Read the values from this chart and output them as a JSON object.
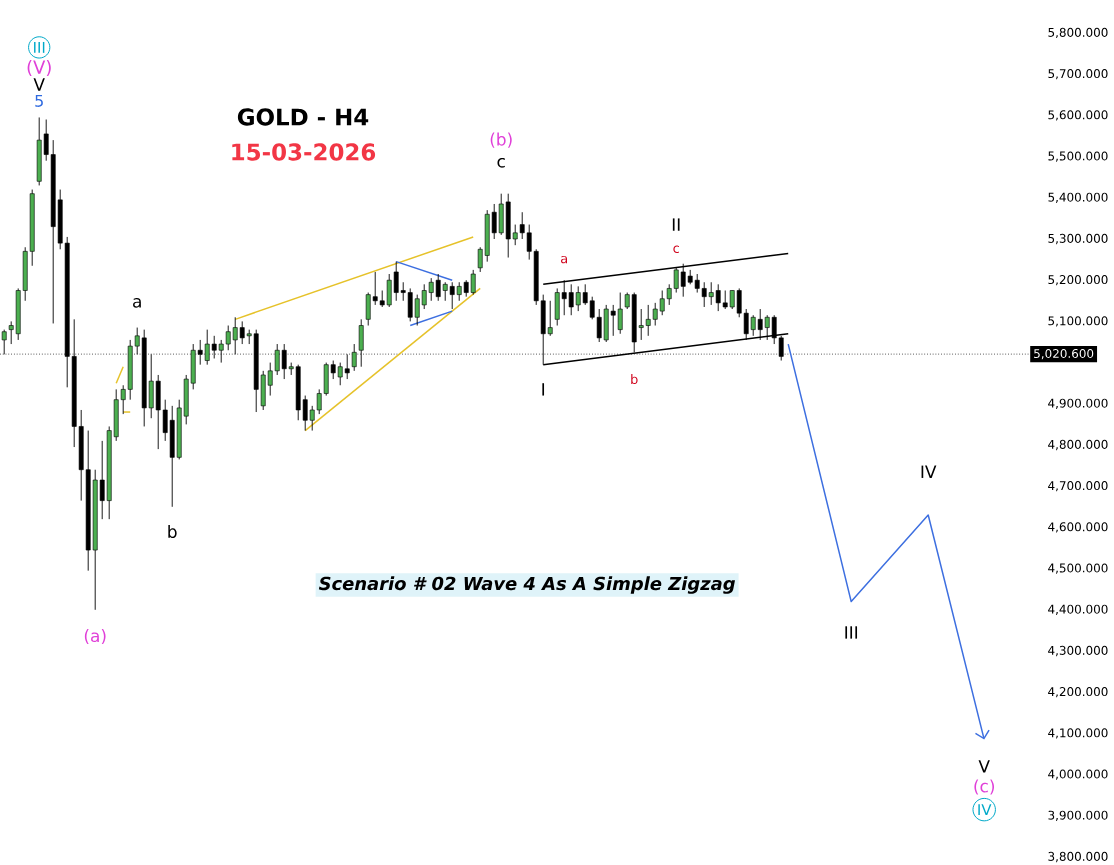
{
  "chart_data": {
    "type": "candlestick",
    "title": "GOLD - H4",
    "subtitle": "15-03-2026",
    "categories": [
      null,
      null,
      null,
      null,
      null,
      null,
      null,
      null,
      null,
      null,
      null,
      null,
      null,
      null,
      null,
      null,
      null,
      null,
      null,
      null,
      null,
      null,
      null,
      null,
      null,
      null,
      null,
      null,
      null,
      null,
      null,
      null,
      null,
      null,
      null,
      null,
      null,
      null,
      null,
      null,
      null,
      null,
      null,
      null,
      null,
      null,
      null,
      null,
      null,
      null,
      null,
      null,
      null,
      null,
      null,
      null,
      null,
      null,
      null,
      null,
      null,
      null,
      null,
      null,
      null,
      null,
      null,
      null,
      null,
      null,
      null,
      null,
      null,
      null,
      null,
      null,
      null,
      null,
      null,
      null,
      null,
      null,
      null,
      null,
      null,
      null,
      null,
      null,
      null,
      null,
      null,
      null,
      null,
      null,
      null,
      null,
      null,
      null,
      null,
      null,
      null,
      null,
      null,
      null,
      null,
      null,
      null,
      null,
      null,
      null,
      null,
      null,
      null,
      null,
      null,
      null,
      null,
      null,
      null,
      null,
      null,
      null,
      null,
      null,
      null,
      null,
      null,
      null,
      null,
      null,
      null,
      null,
      null,
      null,
      null,
      null,
      null,
      null,
      null,
      null,
      null
    ],
    "ohlc": [
      [
        5055,
        5080,
        5020,
        5075
      ],
      [
        5080,
        5100,
        5045,
        5090
      ],
      [
        5070,
        5180,
        5055,
        5175
      ],
      [
        5175,
        5280,
        5150,
        5270
      ],
      [
        5270,
        5420,
        5235,
        5410
      ],
      [
        5440,
        5595,
        5430,
        5540
      ],
      [
        5555,
        5590,
        5490,
        5505
      ],
      [
        5505,
        5540,
        5095,
        5330
      ],
      [
        5395,
        5420,
        5275,
        5290
      ],
      [
        5290,
        5305,
        4940,
        5015
      ],
      [
        5015,
        5105,
        4795,
        4845
      ],
      [
        4845,
        4885,
        4665,
        4740
      ],
      [
        4740,
        4835,
        4495,
        4545
      ],
      [
        4545,
        4740,
        4400,
        4715
      ],
      [
        4715,
        4810,
        4620,
        4665
      ],
      [
        4665,
        4845,
        4620,
        4835
      ],
      [
        4820,
        4935,
        4810,
        4910
      ],
      [
        4910,
        4945,
        4875,
        4935
      ],
      [
        4935,
        5055,
        4910,
        5040
      ],
      [
        5040,
        5085,
        5020,
        5065
      ],
      [
        5060,
        5080,
        4845,
        4890
      ],
      [
        4890,
        5020,
        4865,
        4955
      ],
      [
        4955,
        4970,
        4790,
        4885
      ],
      [
        4885,
        4910,
        4810,
        4830
      ],
      [
        4860,
        4895,
        4650,
        4770
      ],
      [
        4770,
        4910,
        4765,
        4890
      ],
      [
        4870,
        4970,
        4850,
        4960
      ],
      [
        4950,
        5045,
        4935,
        5030
      ],
      [
        5030,
        5055,
        4995,
        5020
      ],
      [
        5005,
        5080,
        4995,
        5045
      ],
      [
        5045,
        5065,
        5010,
        5030
      ],
      [
        5030,
        5055,
        5000,
        5045
      ],
      [
        5045,
        5090,
        5030,
        5075
      ],
      [
        5055,
        5110,
        5020,
        5085
      ],
      [
        5085,
        5100,
        5045,
        5060
      ],
      [
        5065,
        5080,
        5045,
        5070
      ],
      [
        5070,
        5080,
        4880,
        4935
      ],
      [
        4895,
        4980,
        4885,
        4970
      ],
      [
        4945,
        5000,
        4920,
        4980
      ],
      [
        4980,
        5045,
        4970,
        5030
      ],
      [
        5030,
        5045,
        4960,
        4985
      ],
      [
        4985,
        5000,
        4970,
        4990
      ],
      [
        4990,
        4995,
        4860,
        4885
      ],
      [
        4910,
        4920,
        4835,
        4860
      ],
      [
        4860,
        4895,
        4835,
        4885
      ],
      [
        4885,
        4935,
        4875,
        4925
      ],
      [
        4925,
        5000,
        4920,
        4995
      ],
      [
        4995,
        5005,
        4960,
        4975
      ],
      [
        4965,
        5000,
        4945,
        4990
      ],
      [
        4985,
        5020,
        4960,
        4975
      ],
      [
        4990,
        5045,
        4980,
        5025
      ],
      [
        5030,
        5105,
        4990,
        5090
      ],
      [
        5105,
        5170,
        5090,
        5165
      ],
      [
        5160,
        5220,
        5140,
        5150
      ],
      [
        5150,
        5175,
        5135,
        5140
      ],
      [
        5140,
        5215,
        5135,
        5200
      ],
      [
        5220,
        5245,
        5150,
        5170
      ],
      [
        5175,
        5195,
        5150,
        5170
      ],
      [
        5170,
        5180,
        5100,
        5110
      ],
      [
        5110,
        5165,
        5090,
        5155
      ],
      [
        5140,
        5190,
        5130,
        5175
      ],
      [
        5170,
        5205,
        5150,
        5195
      ],
      [
        5200,
        5215,
        5150,
        5160
      ],
      [
        5175,
        5195,
        5150,
        5190
      ],
      [
        5185,
        5195,
        5130,
        5165
      ],
      [
        5165,
        5195,
        5150,
        5185
      ],
      [
        5195,
        5200,
        5160,
        5170
      ],
      [
        5170,
        5225,
        5165,
        5215
      ],
      [
        5230,
        5280,
        5220,
        5275
      ],
      [
        5260,
        5370,
        5245,
        5360
      ],
      [
        5365,
        5385,
        5300,
        5315
      ],
      [
        5315,
        5410,
        5310,
        5385
      ],
      [
        5390,
        5410,
        5255,
        5300
      ],
      [
        5300,
        5335,
        5285,
        5315
      ],
      [
        5335,
        5365,
        5300,
        5315
      ],
      [
        5315,
        5335,
        5250,
        5270
      ],
      [
        5270,
        5275,
        5140,
        5150
      ],
      [
        5150,
        5165,
        4995,
        5070
      ],
      [
        5070,
        5150,
        5065,
        5085
      ],
      [
        5105,
        5180,
        5090,
        5170
      ],
      [
        5170,
        5200,
        5115,
        5155
      ],
      [
        5170,
        5190,
        5115,
        5135
      ],
      [
        5140,
        5185,
        5125,
        5170
      ],
      [
        5170,
        5190,
        5140,
        5145
      ],
      [
        5150,
        5160,
        5105,
        5110
      ],
      [
        5110,
        5130,
        5050,
        5060
      ],
      [
        5055,
        5140,
        5050,
        5130
      ],
      [
        5125,
        5140,
        5065,
        5115
      ],
      [
        5080,
        5170,
        5070,
        5130
      ],
      [
        5135,
        5170,
        5130,
        5165
      ],
      [
        5165,
        5170,
        5025,
        5050
      ],
      [
        5085,
        5130,
        5055,
        5090
      ],
      [
        5090,
        5140,
        5065,
        5105
      ],
      [
        5105,
        5145,
        5090,
        5130
      ],
      [
        5125,
        5175,
        5115,
        5155
      ],
      [
        5155,
        5190,
        5140,
        5180
      ],
      [
        5180,
        5230,
        5170,
        5225
      ],
      [
        5220,
        5240,
        5160,
        5185
      ],
      [
        5210,
        5225,
        5190,
        5195
      ],
      [
        5200,
        5215,
        5170,
        5180
      ],
      [
        5180,
        5195,
        5135,
        5160
      ],
      [
        5160,
        5195,
        5140,
        5170
      ],
      [
        5175,
        5190,
        5125,
        5145
      ],
      [
        5145,
        5175,
        5130,
        5135
      ],
      [
        5135,
        5175,
        5130,
        5175
      ],
      [
        5175,
        5180,
        5110,
        5120
      ],
      [
        5120,
        5130,
        5055,
        5070
      ],
      [
        5080,
        5115,
        5065,
        5110
      ],
      [
        5105,
        5130,
        5055,
        5080
      ],
      [
        5085,
        5115,
        5055,
        5110
      ],
      [
        5110,
        5115,
        5045,
        5060
      ],
      [
        5060,
        5065,
        5005,
        5015
      ],
      null,
      null,
      null,
      null,
      null,
      null,
      null,
      null,
      null,
      null,
      null,
      null,
      null,
      null,
      null,
      null,
      null,
      null,
      null,
      null,
      null,
      null,
      null,
      null,
      null,
      null,
      null,
      null,
      null
    ],
    "series": [
      {
        "type": "line",
        "color": "#3d6fe0",
        "values": [
          null,
          null,
          null,
          null,
          null,
          null,
          null,
          null,
          null,
          null,
          null,
          null,
          null,
          null,
          null,
          null,
          null,
          null,
          null,
          null,
          null,
          null,
          null,
          null,
          null,
          null,
          null,
          null,
          null,
          null,
          null,
          null,
          null,
          null,
          null,
          null,
          null,
          null,
          null,
          null,
          null,
          null,
          null,
          null,
          null,
          null,
          null,
          null,
          null,
          null,
          null,
          null,
          null,
          null,
          null,
          null,
          null,
          null,
          null,
          null,
          null,
          null,
          null,
          null,
          null,
          null,
          null,
          null,
          null,
          null,
          null,
          null,
          null,
          null,
          null,
          null,
          null,
          null,
          null,
          null,
          null,
          null,
          null,
          null,
          null,
          null,
          null,
          null,
          null,
          null,
          null,
          null,
          null,
          null,
          null,
          null,
          null,
          null,
          null,
          null,
          null,
          null,
          null,
          null,
          null,
          null,
          null,
          null,
          null,
          null,
          null,
          null,
          5045,
          null,
          null,
          null,
          null,
          null,
          null,
          null,
          null,
          4420,
          null,
          null,
          null,
          null,
          null,
          null,
          null,
          null,
          null,
          null,
          4630,
          null,
          null,
          null,
          null,
          null,
          null,
          null,
          4085
        ]
      },
      {
        "type": "line",
        "color": "#e6c229",
        "values": [
          null,
          null,
          null,
          null,
          null,
          null,
          null,
          null,
          null,
          null,
          null,
          null,
          null,
          null,
          null,
          null,
          null,
          null,
          null,
          null,
          null,
          null,
          null,
          null,
          null,
          null,
          null,
          null,
          null,
          null,
          null,
          null,
          null,
          5105,
          null,
          null,
          null,
          null,
          null,
          null,
          null,
          null,
          null,
          null,
          null,
          null,
          null,
          null,
          null,
          null,
          null,
          null,
          null,
          null,
          null,
          null,
          null,
          null,
          null,
          null,
          null,
          null,
          null,
          null,
          null,
          null,
          null,
          5305,
          null,
          null,
          null,
          null,
          null,
          null,
          null,
          null,
          null,
          null,
          null,
          null,
          null,
          null,
          null,
          null,
          null,
          null,
          null,
          null,
          null,
          null,
          null,
          null,
          null,
          null,
          null,
          null,
          null,
          null,
          null,
          null,
          null,
          null,
          null,
          null,
          null,
          null,
          null,
          null,
          null,
          null,
          null,
          null,
          null,
          null,
          null,
          null,
          null,
          null,
          null,
          null,
          null,
          null,
          null,
          null,
          null,
          null,
          null,
          null,
          null,
          null,
          null,
          null,
          null,
          null,
          null,
          null,
          null,
          null,
          null,
          null,
          null
        ]
      },
      {
        "type": "line",
        "color": "#e6c229",
        "values": [
          null,
          null,
          null,
          null,
          null,
          null,
          null,
          null,
          null,
          null,
          null,
          null,
          null,
          null,
          null,
          null,
          null,
          null,
          null,
          null,
          null,
          null,
          null,
          null,
          null,
          null,
          null,
          null,
          null,
          null,
          null,
          null,
          null,
          null,
          null,
          null,
          null,
          null,
          null,
          null,
          null,
          null,
          null,
          4835,
          null,
          null,
          null,
          null,
          null,
          null,
          null,
          null,
          null,
          null,
          null,
          null,
          null,
          null,
          null,
          null,
          null,
          null,
          null,
          null,
          null,
          null,
          null,
          null,
          5180,
          null,
          null,
          null,
          null,
          null,
          null,
          null,
          null,
          null,
          null,
          null,
          null,
          null,
          null,
          null,
          null,
          null,
          null,
          null,
          null,
          null,
          null,
          null,
          null,
          null,
          null,
          null,
          null,
          null,
          null,
          null,
          null,
          null,
          null,
          null,
          null,
          null,
          null,
          null,
          null,
          null,
          null,
          null,
          null,
          null,
          null,
          null,
          null,
          null,
          null,
          null,
          null,
          null,
          null,
          null,
          null,
          null,
          null,
          null,
          null,
          null,
          null,
          null,
          null,
          null,
          null,
          null,
          null,
          null,
          null,
          null,
          null
        ]
      },
      {
        "type": "line",
        "color": "#3d6fe0",
        "values": [
          null,
          null,
          null,
          null,
          null,
          null,
          null,
          null,
          null,
          null,
          null,
          null,
          null,
          null,
          null,
          null,
          null,
          null,
          null,
          null,
          null,
          null,
          null,
          null,
          null,
          null,
          null,
          null,
          null,
          null,
          null,
          null,
          null,
          null,
          null,
          null,
          null,
          null,
          null,
          null,
          null,
          null,
          null,
          null,
          null,
          null,
          null,
          null,
          null,
          null,
          null,
          null,
          null,
          null,
          null,
          null,
          5245,
          null,
          null,
          null,
          null,
          null,
          null,
          null,
          5200,
          null,
          null,
          null,
          null,
          null,
          null,
          null,
          null,
          null,
          null,
          null,
          null,
          null,
          null,
          null,
          null,
          null,
          null,
          null,
          null,
          null,
          null,
          null,
          null,
          null,
          null,
          null,
          null,
          null,
          null,
          null,
          null,
          null,
          null,
          null,
          null,
          null,
          null,
          null,
          null,
          null,
          null,
          null,
          null,
          null,
          null,
          null,
          null,
          null,
          null,
          null,
          null,
          null,
          null,
          null,
          null,
          null,
          null,
          null,
          null,
          null,
          null,
          null,
          null,
          null,
          null,
          null,
          null,
          null,
          null,
          null,
          null,
          null,
          null,
          null,
          null
        ]
      },
      {
        "type": "line",
        "color": "#3d6fe0",
        "values": [
          null,
          null,
          null,
          null,
          null,
          null,
          null,
          null,
          null,
          null,
          null,
          null,
          null,
          null,
          null,
          null,
          null,
          null,
          null,
          null,
          null,
          null,
          null,
          null,
          null,
          null,
          null,
          null,
          null,
          null,
          null,
          null,
          null,
          null,
          null,
          null,
          null,
          null,
          null,
          null,
          null,
          null,
          null,
          null,
          null,
          null,
          null,
          null,
          null,
          null,
          null,
          null,
          null,
          null,
          null,
          null,
          null,
          null,
          5090,
          null,
          null,
          null,
          null,
          null,
          5125,
          null,
          null,
          null,
          null,
          null,
          null,
          null,
          null,
          null,
          null,
          null,
          null,
          null,
          null,
          null,
          null,
          null,
          null,
          null,
          null,
          null,
          null,
          null,
          null,
          null,
          null,
          null,
          null,
          null,
          null,
          null,
          null,
          null,
          null,
          null,
          null,
          null,
          null,
          null,
          null,
          null,
          null,
          null,
          null,
          null,
          null,
          null,
          null,
          null,
          null,
          null,
          null,
          null,
          null,
          null,
          null,
          null,
          null,
          null,
          null,
          null,
          null,
          null,
          null,
          null,
          null,
          null,
          null,
          null,
          null,
          null,
          null,
          null,
          null,
          null,
          null
        ]
      },
      {
        "type": "line",
        "color": "#e6c229",
        "values": [
          null,
          null,
          null,
          null,
          null,
          null,
          null,
          null,
          null,
          null,
          null,
          null,
          null,
          null,
          null,
          null,
          4950,
          4990,
          null,
          null,
          null,
          null,
          null,
          null,
          null,
          null,
          null,
          null,
          null,
          null,
          null,
          null,
          null,
          null,
          null,
          null,
          null,
          null,
          null,
          null,
          null,
          null,
          null,
          null,
          null,
          null,
          null,
          null,
          null,
          null,
          null,
          null,
          null,
          null,
          null,
          null,
          null,
          null,
          null,
          null,
          null,
          null,
          null,
          null,
          null,
          null,
          null,
          null,
          null,
          null,
          null,
          null,
          null,
          null,
          null,
          null,
          null,
          null,
          null,
          null,
          null,
          null,
          null,
          null,
          null,
          null,
          null,
          null,
          null,
          null,
          null,
          null,
          null,
          null,
          null,
          null,
          null,
          null,
          null,
          null,
          null,
          null,
          null,
          null,
          null,
          null,
          null,
          null,
          null,
          null,
          null,
          null,
          null,
          null,
          null,
          null,
          null,
          null,
          null,
          null,
          null,
          null,
          null,
          null,
          null,
          null,
          null,
          null,
          null,
          null,
          null,
          null,
          null,
          null,
          null,
          null,
          null,
          null,
          null,
          null,
          null
        ]
      },
      {
        "type": "line",
        "color": "#e6c229",
        "values": [
          null,
          null,
          null,
          null,
          null,
          null,
          null,
          null,
          null,
          null,
          null,
          null,
          null,
          null,
          null,
          null,
          null,
          4880,
          4880,
          null,
          null,
          null,
          null,
          null,
          null,
          null,
          null,
          null,
          null,
          null,
          null,
          null,
          null,
          null,
          null,
          null,
          null,
          null,
          null,
          null,
          null,
          null,
          null,
          null,
          null,
          null,
          null,
          null,
          null,
          null,
          null,
          null,
          null,
          null,
          null,
          null,
          null,
          null,
          null,
          null,
          null,
          null,
          null,
          null,
          null,
          null,
          null,
          null,
          null,
          null,
          null,
          null,
          null,
          null,
          null,
          null,
          null,
          null,
          null,
          null,
          null,
          null,
          null,
          null,
          null,
          null,
          null,
          null,
          null,
          null,
          null,
          null,
          null,
          null,
          null,
          null,
          null,
          null,
          null,
          null,
          null,
          null,
          null,
          null,
          null,
          null,
          null,
          null,
          null,
          null,
          null,
          null,
          null,
          null,
          null,
          null,
          null,
          null,
          null,
          null,
          null,
          null,
          null,
          null,
          null,
          null,
          null,
          null,
          null,
          null,
          null,
          null,
          null,
          null,
          null,
          null,
          null,
          null,
          null,
          null,
          null
        ]
      },
      {
        "type": "line",
        "color": "#000000",
        "values": [
          null,
          null,
          null,
          null,
          null,
          null,
          null,
          null,
          null,
          null,
          null,
          null,
          null,
          null,
          null,
          null,
          null,
          null,
          null,
          null,
          null,
          null,
          null,
          null,
          null,
          null,
          null,
          null,
          null,
          null,
          null,
          null,
          null,
          null,
          null,
          null,
          null,
          null,
          null,
          null,
          null,
          null,
          null,
          null,
          null,
          null,
          null,
          null,
          null,
          null,
          null,
          null,
          null,
          null,
          null,
          null,
          null,
          null,
          null,
          null,
          null,
          null,
          null,
          null,
          null,
          null,
          null,
          null,
          null,
          null,
          null,
          null,
          null,
          null,
          null,
          null,
          null,
          5190,
          null,
          null,
          null,
          null,
          null,
          null,
          null,
          null,
          null,
          null,
          null,
          null,
          null,
          null,
          null,
          null,
          null,
          null,
          null,
          null,
          null,
          null,
          null,
          null,
          null,
          null,
          null,
          null,
          null,
          null,
          null,
          null,
          null,
          null,
          5265,
          null,
          null,
          null,
          null,
          null,
          null,
          null,
          null,
          null,
          null,
          null,
          null,
          null,
          null,
          null,
          null,
          null,
          null,
          null,
          null,
          null,
          null,
          null,
          null,
          null,
          null,
          null,
          null
        ]
      },
      {
        "type": "line",
        "color": "#000000",
        "values": [
          null,
          null,
          null,
          null,
          null,
          null,
          null,
          null,
          null,
          null,
          null,
          null,
          null,
          null,
          null,
          null,
          null,
          null,
          null,
          null,
          null,
          null,
          null,
          null,
          null,
          null,
          null,
          null,
          null,
          null,
          null,
          null,
          null,
          null,
          null,
          null,
          null,
          null,
          null,
          null,
          null,
          null,
          null,
          null,
          null,
          null,
          null,
          null,
          null,
          null,
          null,
          null,
          null,
          null,
          null,
          null,
          null,
          null,
          null,
          null,
          null,
          null,
          null,
          null,
          null,
          null,
          null,
          null,
          null,
          null,
          null,
          null,
          null,
          null,
          null,
          null,
          null,
          4995,
          null,
          null,
          null,
          null,
          null,
          null,
          null,
          null,
          null,
          null,
          null,
          null,
          null,
          null,
          null,
          null,
          null,
          null,
          null,
          null,
          null,
          null,
          null,
          null,
          null,
          null,
          null,
          null,
          null,
          null,
          null,
          null,
          null,
          null,
          5070,
          null,
          null,
          null,
          null,
          null,
          null,
          null,
          null,
          null,
          null,
          null,
          null,
          null,
          null,
          null,
          null,
          null,
          null,
          null,
          null,
          null,
          null,
          null,
          null,
          null,
          null,
          null,
          null
        ]
      }
    ],
    "ylim": [
      3800,
      5800
    ],
    "yticks": [
      {
        "value": 3800,
        "label": "3,800.000"
      },
      {
        "value": 3900,
        "label": "3,900.000"
      },
      {
        "value": 4000,
        "label": "4,000.000"
      },
      {
        "value": 4100,
        "label": "4,100.000"
      },
      {
        "value": 4200,
        "label": "4,200.000"
      },
      {
        "value": 4300,
        "label": "4,300.000"
      },
      {
        "value": 4400,
        "label": "4,400.000"
      },
      {
        "value": 4500,
        "label": "4,500.000"
      },
      {
        "value": 4600,
        "label": "4,600.000"
      },
      {
        "value": 4700,
        "label": "4,700.000"
      },
      {
        "value": 4800,
        "label": "4,800.000"
      },
      {
        "value": 4900,
        "label": "4,900.000"
      },
      {
        "value": 5100,
        "label": "5,100.000"
      },
      {
        "value": 5200,
        "label": "5,200.000"
      },
      {
        "value": 5300,
        "label": "5,300.000"
      },
      {
        "value": 5400,
        "label": "5,400.000"
      },
      {
        "value": 5500,
        "label": "5,500.000"
      },
      {
        "value": 5600,
        "label": "5,600.000"
      },
      {
        "value": 5700,
        "label": "5,700.000"
      },
      {
        "value": 5800,
        "label": "5,800.000"
      }
    ],
    "tick_labels": "y",
    "ref_lines": [
      {
        "axis": "y",
        "value": 5020.6,
        "label": "5,020.600",
        "line_style": "dotted",
        "color": "#000000"
      }
    ],
    "annotations": [
      "III",
      "(V)",
      "V",
      "5",
      "a",
      "b",
      "(a)",
      "(b)",
      "c",
      "II",
      "a",
      "c",
      "b",
      "I",
      "III",
      "IV",
      "V",
      "(c)",
      "IV",
      "Scenario # 02 Wave 4 As A Simple Zigzag"
    ]
  }
}
